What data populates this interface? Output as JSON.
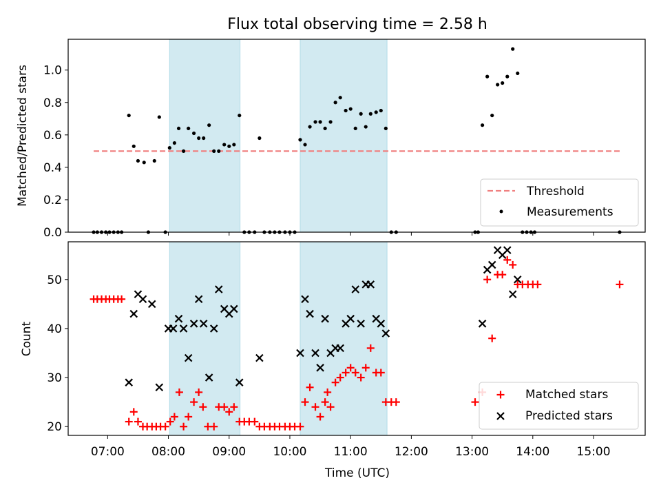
{
  "chart_data": {
    "title": "Flux total observing time = 2.58 h",
    "xlabel": "Time (UTC)",
    "x_unit": "hours (UTC)",
    "xlim": [
      6.35,
      15.85
    ],
    "x_ticks": [
      {
        "v": 7,
        "label": "07:00"
      },
      {
        "v": 8,
        "label": "08:00"
      },
      {
        "v": 9,
        "label": "09:00"
      },
      {
        "v": 10,
        "label": "10:00"
      },
      {
        "v": 11,
        "label": "11:00"
      },
      {
        "v": 12,
        "label": "12:00"
      },
      {
        "v": 13,
        "label": "13:00"
      },
      {
        "v": 14,
        "label": "14:00"
      },
      {
        "v": 15,
        "label": "15:00"
      }
    ],
    "shaded_intervals": [
      [
        8.02,
        9.18
      ],
      [
        10.17,
        11.6
      ]
    ],
    "shade_color": "#add8e6",
    "panels": [
      {
        "type": "scatter",
        "ylabel": "Matched/Predicted stars",
        "ylim": [
          0,
          1.19
        ],
        "y_ticks": [
          {
            "v": 0,
            "label": "0.0"
          },
          {
            "v": 0.2,
            "label": "0.2"
          },
          {
            "v": 0.4,
            "label": "0.4"
          },
          {
            "v": 0.6,
            "label": "0.6"
          },
          {
            "v": 0.8,
            "label": "0.8"
          },
          {
            "v": 1.0,
            "label": "1.0"
          }
        ],
        "threshold": {
          "name": "Threshold",
          "y": 0.5,
          "x_range": [
            6.77,
            15.43
          ],
          "color": "#f08080"
        },
        "measurements": {
          "name": "Measurements",
          "color": "#000000",
          "points": [
            [
              6.77,
              0
            ],
            [
              6.83,
              0
            ],
            [
              6.9,
              0
            ],
            [
              6.97,
              0
            ],
            [
              7.03,
              0
            ],
            [
              7.1,
              0
            ],
            [
              7.17,
              0
            ],
            [
              7.23,
              0
            ],
            [
              7.35,
              0.72
            ],
            [
              7.43,
              0.53
            ],
            [
              7.5,
              0.44
            ],
            [
              7.6,
              0.43
            ],
            [
              7.67,
              0
            ],
            [
              7.77,
              0.44
            ],
            [
              7.85,
              0.71
            ],
            [
              7.95,
              0
            ],
            [
              8.02,
              0.52
            ],
            [
              8.1,
              0.55
            ],
            [
              8.17,
              0.64
            ],
            [
              8.25,
              0.5
            ],
            [
              8.33,
              0.64
            ],
            [
              8.42,
              0.61
            ],
            [
              8.5,
              0.58
            ],
            [
              8.58,
              0.58
            ],
            [
              8.67,
              0.66
            ],
            [
              8.75,
              0.5
            ],
            [
              8.83,
              0.5
            ],
            [
              8.92,
              0.54
            ],
            [
              9.0,
              0.53
            ],
            [
              9.08,
              0.54
            ],
            [
              9.17,
              0.72
            ],
            [
              9.25,
              0
            ],
            [
              9.33,
              0
            ],
            [
              9.42,
              0
            ],
            [
              9.5,
              0.58
            ],
            [
              9.58,
              0
            ],
            [
              9.67,
              0
            ],
            [
              9.75,
              0
            ],
            [
              9.83,
              0
            ],
            [
              9.92,
              0
            ],
            [
              10.0,
              0
            ],
            [
              10.08,
              0
            ],
            [
              10.17,
              0.57
            ],
            [
              10.25,
              0.54
            ],
            [
              10.33,
              0.65
            ],
            [
              10.42,
              0.68
            ],
            [
              10.5,
              0.68
            ],
            [
              10.58,
              0.64
            ],
            [
              10.67,
              0.68
            ],
            [
              10.75,
              0.8
            ],
            [
              10.83,
              0.83
            ],
            [
              10.92,
              0.75
            ],
            [
              11.0,
              0.76
            ],
            [
              11.08,
              0.64
            ],
            [
              11.17,
              0.73
            ],
            [
              11.25,
              0.65
            ],
            [
              11.33,
              0.73
            ],
            [
              11.42,
              0.74
            ],
            [
              11.5,
              0.75
            ],
            [
              11.58,
              0.64
            ],
            [
              11.67,
              0
            ],
            [
              11.75,
              0
            ],
            [
              13.05,
              0
            ],
            [
              13.1,
              0
            ],
            [
              13.17,
              0.66
            ],
            [
              13.25,
              0.96
            ],
            [
              13.33,
              0.72
            ],
            [
              13.42,
              0.91
            ],
            [
              13.5,
              0.92
            ],
            [
              13.58,
              0.96
            ],
            [
              13.67,
              1.13
            ],
            [
              13.75,
              0.98
            ],
            [
              13.83,
              0
            ],
            [
              13.9,
              0
            ],
            [
              13.97,
              0
            ],
            [
              14.03,
              0
            ],
            [
              15.43,
              0
            ]
          ]
        },
        "legend": {
          "placement": "lower right",
          "entries": [
            "Threshold",
            "Measurements"
          ]
        }
      },
      {
        "type": "scatter",
        "ylabel": "Count",
        "ylim": [
          18.2,
          57.7
        ],
        "y_ticks": [
          {
            "v": 20,
            "label": "20"
          },
          {
            "v": 30,
            "label": "30"
          },
          {
            "v": 40,
            "label": "40"
          },
          {
            "v": 50,
            "label": "50"
          }
        ],
        "series": [
          {
            "name": "Matched stars",
            "marker": "plus",
            "color": "#ff0000",
            "points": [
              [
                6.77,
                46
              ],
              [
                6.83,
                46
              ],
              [
                6.9,
                46
              ],
              [
                6.97,
                46
              ],
              [
                7.03,
                46
              ],
              [
                7.1,
                46
              ],
              [
                7.17,
                46
              ],
              [
                7.23,
                46
              ],
              [
                7.35,
                21
              ],
              [
                7.43,
                23
              ],
              [
                7.5,
                21
              ],
              [
                7.58,
                20
              ],
              [
                7.65,
                20
              ],
              [
                7.73,
                20
              ],
              [
                7.8,
                20
              ],
              [
                7.87,
                20
              ],
              [
                7.95,
                20
              ],
              [
                8.03,
                21
              ],
              [
                8.1,
                22
              ],
              [
                8.18,
                27
              ],
              [
                8.25,
                20
              ],
              [
                8.33,
                22
              ],
              [
                8.42,
                25
              ],
              [
                8.5,
                27
              ],
              [
                8.57,
                24
              ],
              [
                8.65,
                20
              ],
              [
                8.75,
                20
              ],
              [
                8.83,
                24
              ],
              [
                8.92,
                24
              ],
              [
                9.0,
                23
              ],
              [
                9.08,
                24
              ],
              [
                9.17,
                21
              ],
              [
                9.25,
                21
              ],
              [
                9.33,
                21
              ],
              [
                9.42,
                21
              ],
              [
                9.5,
                20
              ],
              [
                9.58,
                20
              ],
              [
                9.67,
                20
              ],
              [
                9.75,
                20
              ],
              [
                9.83,
                20
              ],
              [
                9.92,
                20
              ],
              [
                10.0,
                20
              ],
              [
                10.08,
                20
              ],
              [
                10.17,
                20
              ],
              [
                10.25,
                25
              ],
              [
                10.33,
                28
              ],
              [
                10.42,
                24
              ],
              [
                10.5,
                22
              ],
              [
                10.58,
                25
              ],
              [
                10.62,
                27
              ],
              [
                10.67,
                24
              ],
              [
                10.75,
                29
              ],
              [
                10.83,
                30
              ],
              [
                10.92,
                31
              ],
              [
                11.0,
                32
              ],
              [
                11.08,
                31
              ],
              [
                11.17,
                30
              ],
              [
                11.25,
                32
              ],
              [
                11.33,
                36
              ],
              [
                11.42,
                31
              ],
              [
                11.5,
                31
              ],
              [
                11.58,
                25
              ],
              [
                11.67,
                25
              ],
              [
                11.75,
                25
              ],
              [
                13.05,
                25
              ],
              [
                13.17,
                27
              ],
              [
                13.25,
                50
              ],
              [
                13.33,
                38
              ],
              [
                13.42,
                51
              ],
              [
                13.5,
                51
              ],
              [
                13.58,
                54
              ],
              [
                13.67,
                53
              ],
              [
                13.75,
                49
              ],
              [
                13.83,
                49
              ],
              [
                13.92,
                49
              ],
              [
                14.0,
                49
              ],
              [
                14.08,
                49
              ],
              [
                15.43,
                49
              ]
            ]
          },
          {
            "name": "Predicted stars",
            "marker": "x",
            "color": "#000000",
            "points": [
              [
                7.35,
                29
              ],
              [
                7.43,
                43
              ],
              [
                7.5,
                47
              ],
              [
                7.58,
                46
              ],
              [
                7.73,
                45
              ],
              [
                7.85,
                28
              ],
              [
                8.0,
                40
              ],
              [
                8.08,
                40
              ],
              [
                8.17,
                42
              ],
              [
                8.25,
                40
              ],
              [
                8.33,
                34
              ],
              [
                8.42,
                41
              ],
              [
                8.5,
                46
              ],
              [
                8.58,
                41
              ],
              [
                8.67,
                30
              ],
              [
                8.75,
                40
              ],
              [
                8.83,
                48
              ],
              [
                8.92,
                44
              ],
              [
                9.0,
                43
              ],
              [
                9.08,
                44
              ],
              [
                9.17,
                29
              ],
              [
                9.5,
                34
              ],
              [
                10.17,
                35
              ],
              [
                10.25,
                46
              ],
              [
                10.33,
                43
              ],
              [
                10.42,
                35
              ],
              [
                10.5,
                32
              ],
              [
                10.58,
                42
              ],
              [
                10.67,
                35
              ],
              [
                10.75,
                36
              ],
              [
                10.83,
                36
              ],
              [
                10.92,
                41
              ],
              [
                11.0,
                42
              ],
              [
                11.08,
                48
              ],
              [
                11.17,
                41
              ],
              [
                11.25,
                49
              ],
              [
                11.33,
                49
              ],
              [
                11.42,
                42
              ],
              [
                11.5,
                41
              ],
              [
                11.58,
                39
              ],
              [
                13.17,
                41
              ],
              [
                13.25,
                52
              ],
              [
                13.33,
                53
              ],
              [
                13.42,
                56
              ],
              [
                13.5,
                55
              ],
              [
                13.58,
                56
              ],
              [
                13.67,
                47
              ],
              [
                13.75,
                50
              ]
            ]
          }
        ],
        "legend": {
          "placement": "lower right",
          "entries": [
            "Matched stars",
            "Predicted stars"
          ]
        }
      }
    ]
  }
}
